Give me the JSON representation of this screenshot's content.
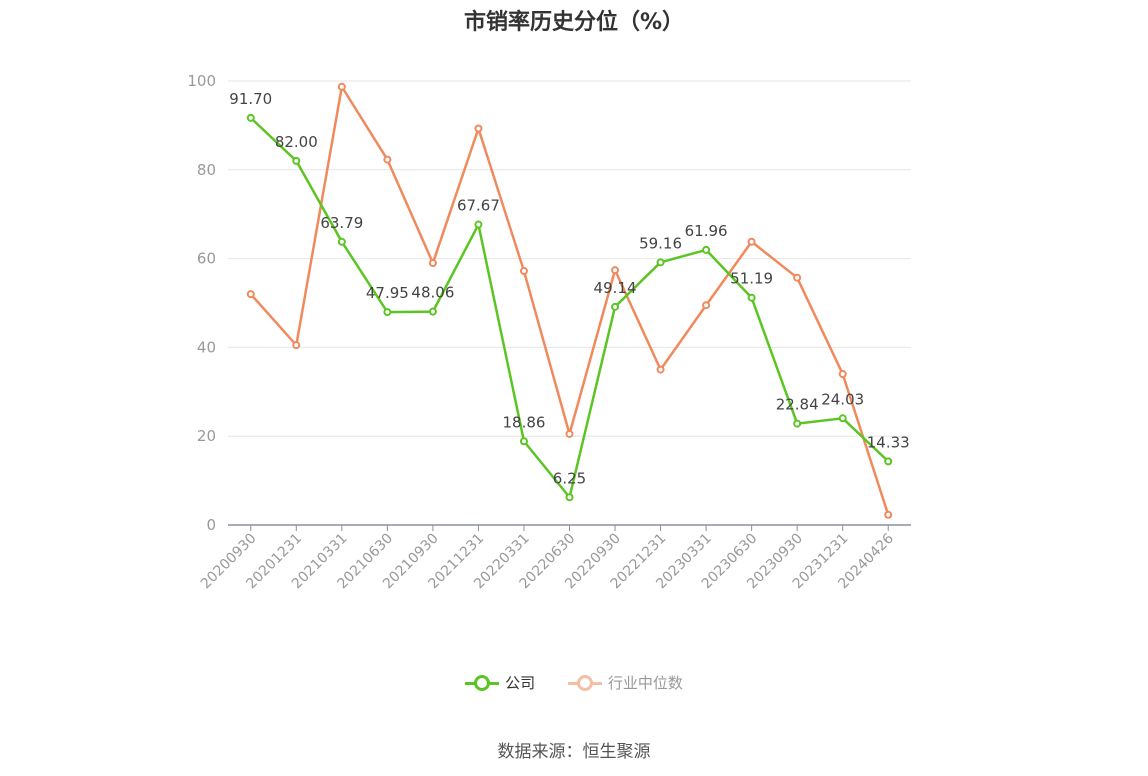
{
  "title": "市销率历史分位（%）",
  "source": "数据来源：恒生聚源",
  "colors": {
    "company": "#5bc524",
    "industry": "#f08a5d",
    "grid": "#e6e6e6",
    "axis": "#8a8fa3",
    "tick": "#999999",
    "label": "#444444"
  },
  "chart_data": {
    "type": "line",
    "title": "市销率历史分位（%）",
    "x": [
      "20200930",
      "20201231",
      "20210331",
      "20210630",
      "20210930",
      "20211231",
      "20220331",
      "20220630",
      "20220930",
      "20221231",
      "20230331",
      "20230630",
      "20230930",
      "20231231",
      "20240426"
    ],
    "ylim": [
      0,
      100
    ],
    "yticks": [
      0,
      20,
      40,
      60,
      80,
      100
    ],
    "grid": true,
    "legend": "bottom",
    "series": [
      {
        "name": "公司",
        "values": [
          91.7,
          82.0,
          63.79,
          47.95,
          48.06,
          67.67,
          18.86,
          6.25,
          49.14,
          59.16,
          61.96,
          51.19,
          22.84,
          24.03,
          14.33
        ],
        "labels": [
          "91.70",
          "82.00",
          "63.79",
          "47.95",
          "48.06",
          "67.67",
          "18.86",
          "6.25",
          "49.14",
          "59.16",
          "61.96",
          "51.19",
          "22.84",
          "24.03",
          "14.33"
        ]
      },
      {
        "name": "行业中位数",
        "values": [
          52,
          40.5,
          98.7,
          82.3,
          59,
          89.3,
          57.2,
          20.5,
          57.4,
          35,
          49.5,
          63.8,
          55.7,
          34,
          2.3
        ]
      }
    ]
  }
}
